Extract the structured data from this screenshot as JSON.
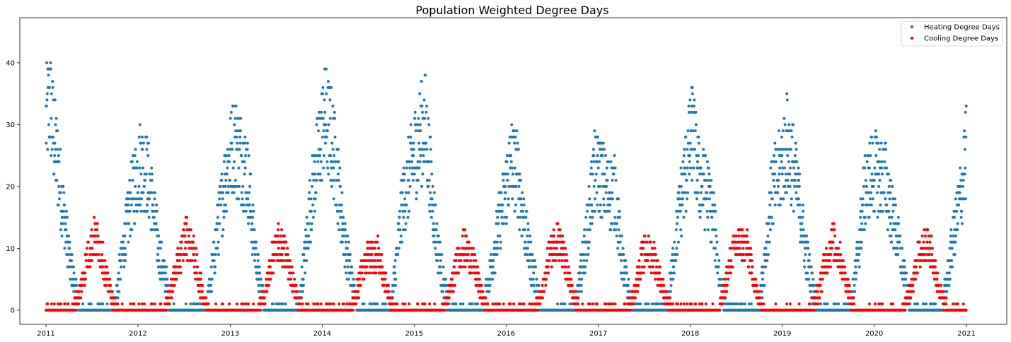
{
  "chart_data": {
    "type": "scatter",
    "title": "Population Weighted Degree Days",
    "xlabel": "",
    "ylabel": "",
    "xlim": [
      "2010-09-19",
      "2021-06-10"
    ],
    "ylim": [
      -2.3,
      47.3
    ],
    "x_ticks": [
      "2011",
      "2012",
      "2013",
      "2014",
      "2015",
      "2016",
      "2017",
      "2018",
      "2019",
      "2020",
      "2021"
    ],
    "y_ticks": [
      0,
      10,
      20,
      30,
      40
    ],
    "grid": false,
    "legend_position": "top-right",
    "sampling": "daily, 2011-01-01 to 2020-12-31",
    "series": [
      {
        "name": "Heating Degree Days",
        "color": "#1f77b4",
        "marker": "circle",
        "anchors": [
          [
            "2011-01-01",
            30
          ],
          [
            "2011-01-15",
            34
          ],
          [
            "2011-02-01",
            28
          ],
          [
            "2011-02-20",
            22
          ],
          [
            "2011-03-15",
            15
          ],
          [
            "2011-04-05",
            8
          ],
          [
            "2011-04-25",
            4
          ],
          [
            "2011-05-15",
            0
          ],
          [
            "2011-09-30",
            0
          ],
          [
            "2011-10-20",
            6
          ],
          [
            "2011-11-15",
            13
          ],
          [
            "2011-12-10",
            19
          ],
          [
            "2012-01-10",
            24
          ],
          [
            "2012-02-05",
            22
          ],
          [
            "2012-03-01",
            17
          ],
          [
            "2012-03-25",
            9
          ],
          [
            "2012-04-20",
            5
          ],
          [
            "2012-05-10",
            0
          ],
          [
            "2012-09-30",
            0
          ],
          [
            "2012-10-20",
            6
          ],
          [
            "2012-11-15",
            14
          ],
          [
            "2012-12-15",
            22
          ],
          [
            "2013-01-15",
            27
          ],
          [
            "2013-02-10",
            25
          ],
          [
            "2013-03-10",
            22
          ],
          [
            "2013-04-01",
            13
          ],
          [
            "2013-04-25",
            5
          ],
          [
            "2013-05-20",
            0
          ],
          [
            "2013-09-30",
            0
          ],
          [
            "2013-10-20",
            7
          ],
          [
            "2013-11-15",
            17
          ],
          [
            "2013-12-20",
            26
          ],
          [
            "2014-01-10",
            31
          ],
          [
            "2014-02-05",
            28
          ],
          [
            "2014-03-01",
            22
          ],
          [
            "2014-04-01",
            11
          ],
          [
            "2014-04-25",
            6
          ],
          [
            "2014-05-20",
            0
          ],
          [
            "2014-09-30",
            0
          ],
          [
            "2014-10-20",
            7
          ],
          [
            "2014-11-15",
            17
          ],
          [
            "2014-12-15",
            22
          ],
          [
            "2015-01-15",
            27
          ],
          [
            "2015-02-15",
            30
          ],
          [
            "2015-03-10",
            20
          ],
          [
            "2015-04-01",
            11
          ],
          [
            "2015-04-25",
            5
          ],
          [
            "2015-05-20",
            0
          ],
          [
            "2015-09-30",
            0
          ],
          [
            "2015-10-25",
            5
          ],
          [
            "2015-11-25",
            12
          ],
          [
            "2015-12-25",
            18
          ],
          [
            "2016-01-20",
            24
          ],
          [
            "2016-02-15",
            22
          ],
          [
            "2016-03-10",
            15
          ],
          [
            "2016-04-01",
            9
          ],
          [
            "2016-04-25",
            5
          ],
          [
            "2016-05-20",
            0
          ],
          [
            "2016-09-30",
            0
          ],
          [
            "2016-10-20",
            5
          ],
          [
            "2016-11-15",
            12
          ],
          [
            "2016-12-15",
            22
          ],
          [
            "2017-01-10",
            22
          ],
          [
            "2017-02-05",
            19
          ],
          [
            "2017-03-10",
            19
          ],
          [
            "2017-04-01",
            9
          ],
          [
            "2017-04-25",
            4
          ],
          [
            "2017-05-20",
            0
          ],
          [
            "2017-09-30",
            0
          ],
          [
            "2017-10-20",
            6
          ],
          [
            "2017-11-15",
            15
          ],
          [
            "2017-12-20",
            24
          ],
          [
            "2018-01-10",
            29
          ],
          [
            "2018-02-05",
            21
          ],
          [
            "2018-03-10",
            19
          ],
          [
            "2018-04-05",
            14
          ],
          [
            "2018-04-30",
            4
          ],
          [
            "2018-05-25",
            0
          ],
          [
            "2018-09-30",
            0
          ],
          [
            "2018-10-20",
            7
          ],
          [
            "2018-11-20",
            19
          ],
          [
            "2018-12-20",
            22
          ],
          [
            "2019-01-20",
            27
          ],
          [
            "2019-02-15",
            23
          ],
          [
            "2019-03-10",
            17
          ],
          [
            "2019-04-01",
            10
          ],
          [
            "2019-04-25",
            5
          ],
          [
            "2019-05-20",
            0
          ],
          [
            "2019-09-30",
            0
          ],
          [
            "2019-10-20",
            6
          ],
          [
            "2019-11-20",
            18
          ],
          [
            "2019-12-20",
            22
          ],
          [
            "2020-01-20",
            22
          ],
          [
            "2020-02-15",
            21
          ],
          [
            "2020-03-15",
            15
          ],
          [
            "2020-04-10",
            10
          ],
          [
            "2020-05-05",
            4
          ],
          [
            "2020-05-25",
            0
          ],
          [
            "2020-09-25",
            0
          ],
          [
            "2020-10-20",
            6
          ],
          [
            "2020-11-20",
            14
          ],
          [
            "2020-12-15",
            20
          ],
          [
            "2020-12-31",
            26
          ]
        ]
      },
      {
        "name": "Cooling Degree Days",
        "color": "#ff0000",
        "marker": "circle",
        "anchors": [
          [
            "2011-01-01",
            0
          ],
          [
            "2011-04-15",
            0
          ],
          [
            "2011-05-15",
            3
          ],
          [
            "2011-06-10",
            8
          ],
          [
            "2011-07-10",
            12
          ],
          [
            "2011-08-05",
            10
          ],
          [
            "2011-08-30",
            5
          ],
          [
            "2011-09-25",
            1
          ],
          [
            "2011-10-15",
            0
          ],
          [
            "2012-04-10",
            0
          ],
          [
            "2012-05-10",
            3
          ],
          [
            "2012-06-10",
            8
          ],
          [
            "2012-07-10",
            12
          ],
          [
            "2012-08-05",
            10
          ],
          [
            "2012-08-30",
            5
          ],
          [
            "2012-09-25",
            1
          ],
          [
            "2012-10-15",
            0
          ],
          [
            "2013-04-20",
            0
          ],
          [
            "2013-05-20",
            3
          ],
          [
            "2013-06-15",
            8
          ],
          [
            "2013-07-15",
            11
          ],
          [
            "2013-08-10",
            9
          ],
          [
            "2013-09-05",
            5
          ],
          [
            "2013-09-30",
            1
          ],
          [
            "2013-10-20",
            0
          ],
          [
            "2014-04-25",
            0
          ],
          [
            "2014-05-25",
            4
          ],
          [
            "2014-06-20",
            8
          ],
          [
            "2014-07-15",
            9
          ],
          [
            "2014-08-10",
            9
          ],
          [
            "2014-09-05",
            5
          ],
          [
            "2014-09-30",
            1
          ],
          [
            "2014-10-20",
            0
          ],
          [
            "2015-04-25",
            0
          ],
          [
            "2015-05-25",
            3
          ],
          [
            "2015-06-20",
            8
          ],
          [
            "2015-07-15",
            10
          ],
          [
            "2015-08-10",
            9
          ],
          [
            "2015-09-10",
            5
          ],
          [
            "2015-10-05",
            1
          ],
          [
            "2015-10-25",
            0
          ],
          [
            "2016-04-25",
            0
          ],
          [
            "2016-05-25",
            3
          ],
          [
            "2016-06-20",
            9
          ],
          [
            "2016-07-20",
            12
          ],
          [
            "2016-08-15",
            9
          ],
          [
            "2016-09-10",
            4
          ],
          [
            "2016-10-05",
            1
          ],
          [
            "2016-10-25",
            0
          ],
          [
            "2017-04-25",
            0
          ],
          [
            "2017-05-25",
            3
          ],
          [
            "2017-06-20",
            8
          ],
          [
            "2017-07-15",
            10
          ],
          [
            "2017-08-15",
            8
          ],
          [
            "2017-09-10",
            4
          ],
          [
            "2017-10-05",
            1
          ],
          [
            "2017-10-25",
            0
          ],
          [
            "2018-04-25",
            0
          ],
          [
            "2018-05-20",
            4
          ],
          [
            "2018-06-15",
            9
          ],
          [
            "2018-07-15",
            11
          ],
          [
            "2018-08-15",
            10
          ],
          [
            "2018-09-10",
            5
          ],
          [
            "2018-10-05",
            1
          ],
          [
            "2018-10-25",
            0
          ],
          [
            "2019-04-25",
            0
          ],
          [
            "2019-05-25",
            3
          ],
          [
            "2019-06-20",
            8
          ],
          [
            "2019-07-20",
            11
          ],
          [
            "2019-08-15",
            9
          ],
          [
            "2019-09-10",
            5
          ],
          [
            "2019-10-05",
            1
          ],
          [
            "2019-10-25",
            0
          ],
          [
            "2020-04-25",
            0
          ],
          [
            "2020-05-25",
            3
          ],
          [
            "2020-06-20",
            8
          ],
          [
            "2020-07-20",
            11
          ],
          [
            "2020-08-15",
            9
          ],
          [
            "2020-09-10",
            4
          ],
          [
            "2020-10-05",
            1
          ],
          [
            "2020-10-25",
            0
          ],
          [
            "2020-12-31",
            0
          ]
        ]
      }
    ]
  }
}
